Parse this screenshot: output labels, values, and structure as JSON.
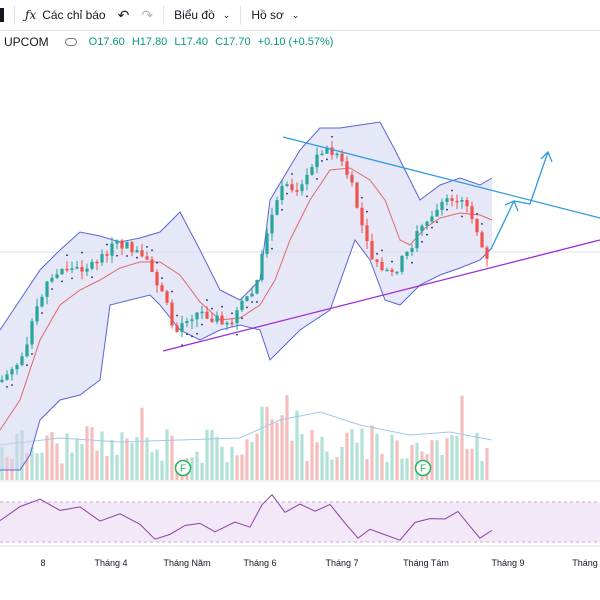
{
  "toolbar": {
    "indicators_label": "Các chỉ báo",
    "chart_label": "Biểu đồ",
    "profile_label": "Hồ sơ"
  },
  "legend": {
    "symbol": "UPCOM",
    "open": "O17.60",
    "high": "H17.80",
    "low": "L17.40",
    "close": "C17.70",
    "change": "+0.10 (+0.57%)"
  },
  "colors": {
    "up": "#26a69a",
    "down": "#ef5350",
    "band_fill": "#d1d4f0",
    "band_line": "#5965d8",
    "ma_line": "#e06a6a",
    "resistance": "#2f9ae0",
    "support": "#9c27d8",
    "rsi_line": "#8e3fa8"
  },
  "chart_data": {
    "type": "candlestick",
    "x_labels": [
      "8",
      "Tháng 4",
      "Tháng Năm",
      "Tháng 6",
      "Tháng 7",
      "Tháng Tám",
      "Tháng 9",
      "Tháng"
    ],
    "last_close": 17.7,
    "event_markers": [
      "F",
      "F"
    ]
  }
}
